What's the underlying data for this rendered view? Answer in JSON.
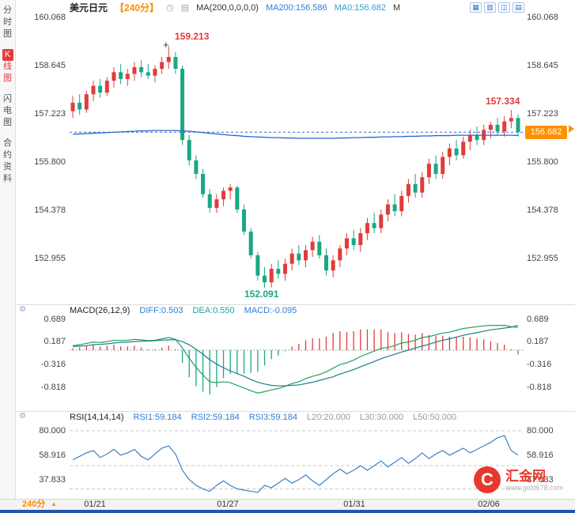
{
  "colors": {
    "up_red": "#e23b3b",
    "down_green": "#1ba784",
    "ma200_line": "#2b66c8",
    "last_price_line": "#2f6fd0",
    "rsi_line": "#3b82c4",
    "diff_line": "#1fa05f",
    "dea_line": "#1a7f8c",
    "accent_orange": "#ff9000",
    "link_blue": "#2f7ed8",
    "bottom_strip_blue": "#1f55ad"
  },
  "sidebar": {
    "items": [
      {
        "label": "分时图",
        "active": false
      },
      {
        "label": "K线图",
        "active": true
      },
      {
        "label": "闪电图",
        "active": false
      },
      {
        "label": "合约资料",
        "active": false
      }
    ]
  },
  "header": {
    "symbol": "美元日元",
    "timeframe_badge": "【240分】",
    "clock_icon": "◷",
    "indicator_icon": "▤",
    "ma_settings": "MA(200,0,0,0,0)",
    "ma200_value": "MA200:156.586",
    "ma0_value": "MA0:156.682",
    "extra_label": "M",
    "tools": [
      {
        "name": "layout-single",
        "glyph": "▦"
      },
      {
        "name": "layout-grid",
        "glyph": "▥"
      },
      {
        "name": "layout-split",
        "glyph": "◫"
      },
      {
        "name": "layout-rows",
        "glyph": "▤"
      }
    ]
  },
  "price_axis_labels": [
    "160.068",
    "158.645",
    "157.223",
    "155.800",
    "154.378",
    "152.955"
  ],
  "annotations": {
    "swing_high_marker": "+",
    "swing_high": "159.213",
    "swing_low": "152.091",
    "recent_high": "157.334",
    "last_price": "156.682"
  },
  "macd_panel": {
    "title": "MACD(26,12,9)",
    "diff_label": "DIFF:0.503",
    "dea_label": "DEA:0.550",
    "macd_label": "MACD:-0.095",
    "axis_labels": [
      "0.689",
      "0.187",
      "-0.316",
      "-0.818"
    ],
    "settings_icon": "⚙"
  },
  "rsi_panel": {
    "title": "RSI(14,14,14)",
    "rsi1_label": "RSI1:59.184",
    "rsi2_label": "RSI2:59.184",
    "rsi3_label": "RSI3:59.184",
    "l20_label": "L20:20.000",
    "l30_label": "L30:30.000",
    "l50_label": "L50:50.000",
    "axis_labels": [
      "80.000",
      "58.916",
      "37.833"
    ],
    "settings_icon": "⚙"
  },
  "bottom_bar": {
    "timeframe": "240分",
    "collapse_icon": "▲",
    "dates": [
      "01/21",
      "01/27",
      "01/31",
      "02/06"
    ]
  },
  "logo": {
    "monogram": "C",
    "name": "汇金网",
    "site": "www.gold678.com"
  },
  "chart_data": [
    {
      "type": "candlestick",
      "title": "美元日元 240分 K线",
      "y_ticks": [
        160.068,
        158.645,
        157.223,
        155.8,
        154.378,
        152.955
      ],
      "ylim": [
        152.0,
        160.3
      ],
      "x_date_ticks": [
        "01/21",
        "01/27",
        "01/31",
        "02/06"
      ],
      "last_price": 156.682,
      "markers": {
        "swing_high": 159.213,
        "swing_low": 152.091,
        "recent_high": 157.334
      },
      "ohlc": [
        [
          157.3,
          157.75,
          157.1,
          157.55
        ],
        [
          157.55,
          157.8,
          157.2,
          157.35
        ],
        [
          157.35,
          157.9,
          157.25,
          157.8
        ],
        [
          157.8,
          158.2,
          157.6,
          158.05
        ],
        [
          158.05,
          158.25,
          157.7,
          157.85
        ],
        [
          157.85,
          158.3,
          157.75,
          158.2
        ],
        [
          158.2,
          158.6,
          158.0,
          158.45
        ],
        [
          158.45,
          158.7,
          158.1,
          158.25
        ],
        [
          158.25,
          158.55,
          158.05,
          158.4
        ],
        [
          158.4,
          158.75,
          158.2,
          158.6
        ],
        [
          158.6,
          158.8,
          158.3,
          158.45
        ],
        [
          158.45,
          158.7,
          158.25,
          158.35
        ],
        [
          158.35,
          158.65,
          158.15,
          158.55
        ],
        [
          158.55,
          158.9,
          158.4,
          158.75
        ],
        [
          158.75,
          159.213,
          158.55,
          158.9
        ],
        [
          158.9,
          159.05,
          158.4,
          158.55
        ],
        [
          158.55,
          158.65,
          156.3,
          156.45
        ],
        [
          156.45,
          156.6,
          155.7,
          155.85
        ],
        [
          155.85,
          156.0,
          155.3,
          155.45
        ],
        [
          155.45,
          155.6,
          154.75,
          154.85
        ],
        [
          154.85,
          155.0,
          154.3,
          154.45
        ],
        [
          154.45,
          154.85,
          154.3,
          154.7
        ],
        [
          154.7,
          155.05,
          154.5,
          154.95
        ],
        [
          154.95,
          155.15,
          154.7,
          155.05
        ],
        [
          155.05,
          155.1,
          154.3,
          154.4
        ],
        [
          154.4,
          154.55,
          153.65,
          153.75
        ],
        [
          153.75,
          153.85,
          152.95,
          153.05
        ],
        [
          153.05,
          153.15,
          152.3,
          152.45
        ],
        [
          152.45,
          152.7,
          152.091,
          152.25
        ],
        [
          152.25,
          152.8,
          152.1,
          152.65
        ],
        [
          152.65,
          152.9,
          152.35,
          152.5
        ],
        [
          152.5,
          152.95,
          152.3,
          152.8
        ],
        [
          152.8,
          153.25,
          152.6,
          153.1
        ],
        [
          153.1,
          153.35,
          152.75,
          152.9
        ],
        [
          152.9,
          153.35,
          152.7,
          153.2
        ],
        [
          153.2,
          153.6,
          153.0,
          153.45
        ],
        [
          153.45,
          153.65,
          152.95,
          153.05
        ],
        [
          153.05,
          153.25,
          152.45,
          152.6
        ],
        [
          152.6,
          153.05,
          152.4,
          152.9
        ],
        [
          152.9,
          153.35,
          152.7,
          153.25
        ],
        [
          153.25,
          153.7,
          153.05,
          153.55
        ],
        [
          153.55,
          153.8,
          153.2,
          153.35
        ],
        [
          153.35,
          153.85,
          153.15,
          153.7
        ],
        [
          153.7,
          154.15,
          153.5,
          154.0
        ],
        [
          154.0,
          154.3,
          153.7,
          153.85
        ],
        [
          153.85,
          154.4,
          153.7,
          154.25
        ],
        [
          154.25,
          154.7,
          154.05,
          154.55
        ],
        [
          154.55,
          154.85,
          154.2,
          154.35
        ],
        [
          154.35,
          154.95,
          154.2,
          154.8
        ],
        [
          154.8,
          155.3,
          154.6,
          155.15
        ],
        [
          155.15,
          155.45,
          154.75,
          154.9
        ],
        [
          154.9,
          155.5,
          154.75,
          155.35
        ],
        [
          155.35,
          155.9,
          155.15,
          155.75
        ],
        [
          155.75,
          156.0,
          155.3,
          155.45
        ],
        [
          155.45,
          156.1,
          155.3,
          155.95
        ],
        [
          155.95,
          156.35,
          155.7,
          156.2
        ],
        [
          156.2,
          156.45,
          155.85,
          156.0
        ],
        [
          156.0,
          156.55,
          155.9,
          156.4
        ],
        [
          156.4,
          156.75,
          156.15,
          156.6
        ],
        [
          156.6,
          156.85,
          156.3,
          156.45
        ],
        [
          156.45,
          156.9,
          156.3,
          156.75
        ],
        [
          156.75,
          157.0,
          156.5,
          156.9
        ],
        [
          156.9,
          157.1,
          156.6,
          156.7
        ],
        [
          156.7,
          157.15,
          156.55,
          157.0
        ],
        [
          157.0,
          157.334,
          156.8,
          157.1
        ],
        [
          157.1,
          157.2,
          156.55,
          156.682
        ]
      ],
      "series": [
        {
          "name": "MA200",
          "values": [
            156.62,
            156.63,
            156.64,
            156.65,
            156.66,
            156.67,
            156.68,
            156.69,
            156.7,
            156.71,
            156.72,
            156.72,
            156.73,
            156.73,
            156.73,
            156.73,
            156.72,
            156.71,
            156.69,
            156.67,
            156.65,
            156.63,
            156.61,
            156.59,
            156.58,
            156.56,
            156.55,
            156.54,
            156.53,
            156.52,
            156.52,
            156.51,
            156.51,
            156.5,
            156.5,
            156.5,
            156.5,
            156.5,
            156.5,
            156.51,
            156.51,
            156.52,
            156.52,
            156.53,
            156.53,
            156.54,
            156.54,
            156.55,
            156.55,
            156.56,
            156.56,
            156.57,
            156.57,
            156.58,
            156.58,
            156.58,
            156.59,
            156.59,
            156.59,
            156.59,
            156.59,
            156.59,
            156.59,
            156.59,
            156.59,
            156.586
          ]
        }
      ]
    },
    {
      "type": "bar",
      "title": "MACD(26,12,9)",
      "y_ticks": [
        0.689,
        0.187,
        -0.316,
        -0.818
      ],
      "latest": {
        "DIFF": 0.503,
        "DEA": 0.55,
        "MACD": -0.095
      },
      "series": [
        {
          "name": "DIFF",
          "type": "line",
          "values": [
            0.1,
            0.12,
            0.15,
            0.18,
            0.17,
            0.19,
            0.22,
            0.21,
            0.22,
            0.24,
            0.23,
            0.21,
            0.22,
            0.25,
            0.28,
            0.24,
            0.05,
            -0.18,
            -0.38,
            -0.55,
            -0.7,
            -0.72,
            -0.7,
            -0.72,
            -0.78,
            -0.84,
            -0.9,
            -0.95,
            -0.92,
            -0.88,
            -0.85,
            -0.8,
            -0.74,
            -0.7,
            -0.63,
            -0.58,
            -0.54,
            -0.48,
            -0.4,
            -0.32,
            -0.28,
            -0.22,
            -0.14,
            -0.08,
            -0.02,
            0.04,
            0.06,
            0.1,
            0.16,
            0.18,
            0.22,
            0.28,
            0.3,
            0.34,
            0.38,
            0.4,
            0.44,
            0.48,
            0.5,
            0.52,
            0.54,
            0.55,
            0.55,
            0.55,
            0.52,
            0.503
          ]
        },
        {
          "name": "DEA",
          "type": "line",
          "values": [
            0.08,
            0.09,
            0.1,
            0.12,
            0.13,
            0.14,
            0.16,
            0.17,
            0.18,
            0.19,
            0.2,
            0.2,
            0.21,
            0.22,
            0.23,
            0.23,
            0.19,
            0.12,
            0.02,
            -0.09,
            -0.21,
            -0.31,
            -0.39,
            -0.46,
            -0.52,
            -0.58,
            -0.65,
            -0.71,
            -0.75,
            -0.78,
            -0.79,
            -0.79,
            -0.78,
            -0.77,
            -0.74,
            -0.71,
            -0.67,
            -0.63,
            -0.59,
            -0.53,
            -0.48,
            -0.43,
            -0.37,
            -0.31,
            -0.25,
            -0.19,
            -0.14,
            -0.09,
            -0.04,
            0.0,
            0.05,
            0.09,
            0.13,
            0.18,
            0.22,
            0.25,
            0.29,
            0.33,
            0.36,
            0.39,
            0.42,
            0.45,
            0.47,
            0.49,
            0.51,
            0.55
          ]
        },
        {
          "name": "MACD",
          "type": "bar",
          "values": [
            0.04,
            0.06,
            0.1,
            0.12,
            0.08,
            0.1,
            0.12,
            0.08,
            0.08,
            0.1,
            0.06,
            0.02,
            0.02,
            0.06,
            0.1,
            0.02,
            -0.28,
            -0.6,
            -0.8,
            -0.92,
            -0.98,
            -0.82,
            -0.62,
            -0.52,
            -0.52,
            -0.52,
            -0.5,
            -0.48,
            -0.34,
            -0.2,
            -0.12,
            -0.02,
            0.08,
            0.14,
            0.22,
            0.26,
            0.26,
            0.3,
            0.38,
            0.42,
            0.4,
            0.42,
            0.46,
            0.46,
            0.46,
            0.46,
            0.4,
            0.38,
            0.4,
            0.36,
            0.34,
            0.38,
            0.34,
            0.32,
            0.32,
            0.3,
            0.3,
            0.3,
            0.28,
            0.26,
            0.24,
            0.2,
            0.16,
            0.12,
            0.02,
            -0.095
          ]
        }
      ]
    },
    {
      "type": "line",
      "title": "RSI(14,14,14)",
      "y_ticks": [
        80.0,
        58.916,
        37.833
      ],
      "levels": {
        "L20": 20.0,
        "L30": 30.0,
        "L50": 50.0
      },
      "latest": {
        "RSI1": 59.184,
        "RSI2": 59.184,
        "RSI3": 59.184
      },
      "series": [
        {
          "name": "RSI",
          "values": [
            55,
            58,
            61,
            63,
            57,
            60,
            64,
            59,
            61,
            64,
            58,
            55,
            60,
            65,
            67,
            60,
            46,
            38,
            33,
            30,
            28,
            33,
            37,
            33,
            30,
            29,
            28,
            27,
            33,
            31,
            35,
            39,
            35,
            38,
            42,
            37,
            33,
            38,
            43,
            47,
            43,
            46,
            50,
            46,
            50,
            54,
            49,
            53,
            57,
            52,
            56,
            61,
            56,
            60,
            63,
            59,
            62,
            65,
            61,
            64,
            67,
            70,
            74,
            76,
            63,
            59.184
          ]
        }
      ]
    }
  ]
}
